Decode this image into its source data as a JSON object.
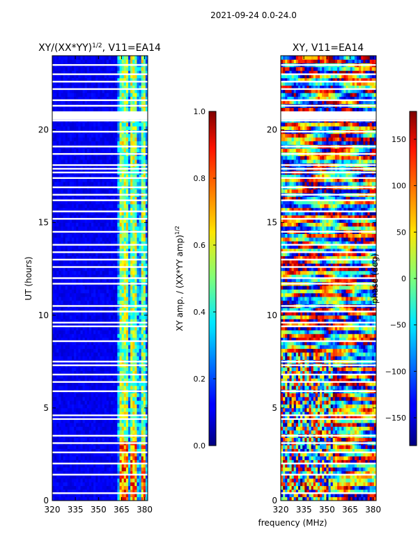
{
  "figure": {
    "suptitle": "2021-09-24 0.0-24.0",
    "xlabel": "frequency (MHz)"
  },
  "chart_data": [
    {
      "type": "heatmap",
      "title_main": "XY/(XX*YY)",
      "title_sup": "1/2",
      "title_tail": ", V11=EA14",
      "xlabel": "",
      "ylabel": "UT (hours)",
      "xlim": [
        320,
        382
      ],
      "ylim": [
        0,
        24
      ],
      "xticks": [
        320,
        335,
        350,
        365,
        380
      ],
      "yticks": [
        0,
        5,
        10,
        15,
        20
      ],
      "colorbar": {
        "label_main": "XY amp. / (XX*YY amp)",
        "label_sup": "1/2",
        "range": [
          0.0,
          1.0
        ],
        "ticks": [
          "0.0",
          "0.2",
          "0.4",
          "0.6",
          "0.8",
          "1.0"
        ],
        "tick_values": [
          0.0,
          0.2,
          0.4,
          0.6,
          0.8,
          1.0
        ]
      },
      "gaps_hours": [
        0.4,
        1.4,
        2.0,
        2.6,
        3.1,
        3.5,
        4.4,
        4.6,
        5.9,
        6.4,
        6.8,
        7.3,
        7.5,
        8.6,
        9.4,
        9.6,
        10.2,
        10.5,
        11.7,
        12.0,
        12.6,
        13.0,
        13.4,
        13.8,
        14.5,
        15.2,
        15.6,
        16.2,
        16.5,
        16.9,
        17.4,
        17.7,
        17.9,
        18.1,
        18.7,
        19.1,
        19.9,
        20.5,
        20.9,
        21.3,
        21.6,
        22.2,
        22.6,
        23.0,
        23.5
      ],
      "bright_channels_mhz": [
        364,
        366,
        368,
        372,
        374,
        378,
        380
      ]
    },
    {
      "type": "heatmap",
      "title": "XY, V11=EA14",
      "xlabel": "",
      "ylabel": "",
      "xlim": [
        320,
        382
      ],
      "ylim": [
        0,
        24
      ],
      "xticks": [
        320,
        335,
        350,
        365,
        380
      ],
      "yticks": [
        0,
        5,
        10,
        15,
        20
      ],
      "colorbar": {
        "label": "phase (deg)",
        "range": [
          -180,
          180
        ],
        "ticks": [
          "−150",
          "−100",
          "−50",
          "0",
          "50",
          "100",
          "150"
        ],
        "tick_values": [
          -150,
          -100,
          -50,
          0,
          50,
          100,
          150
        ]
      },
      "gaps_hours": [
        0.4,
        1.4,
        2.0,
        2.6,
        3.1,
        3.5,
        4.4,
        4.6,
        5.9,
        6.4,
        6.8,
        7.3,
        7.5,
        8.6,
        9.4,
        9.6,
        10.2,
        10.5,
        11.7,
        12.0,
        12.6,
        13.0,
        13.4,
        13.8,
        14.5,
        15.2,
        15.6,
        16.2,
        16.5,
        16.9,
        17.4,
        17.7,
        17.9,
        18.1,
        18.7,
        19.1,
        19.9,
        20.5,
        20.9,
        21.3,
        21.6,
        22.2,
        22.6,
        23.0,
        23.5
      ]
    }
  ]
}
